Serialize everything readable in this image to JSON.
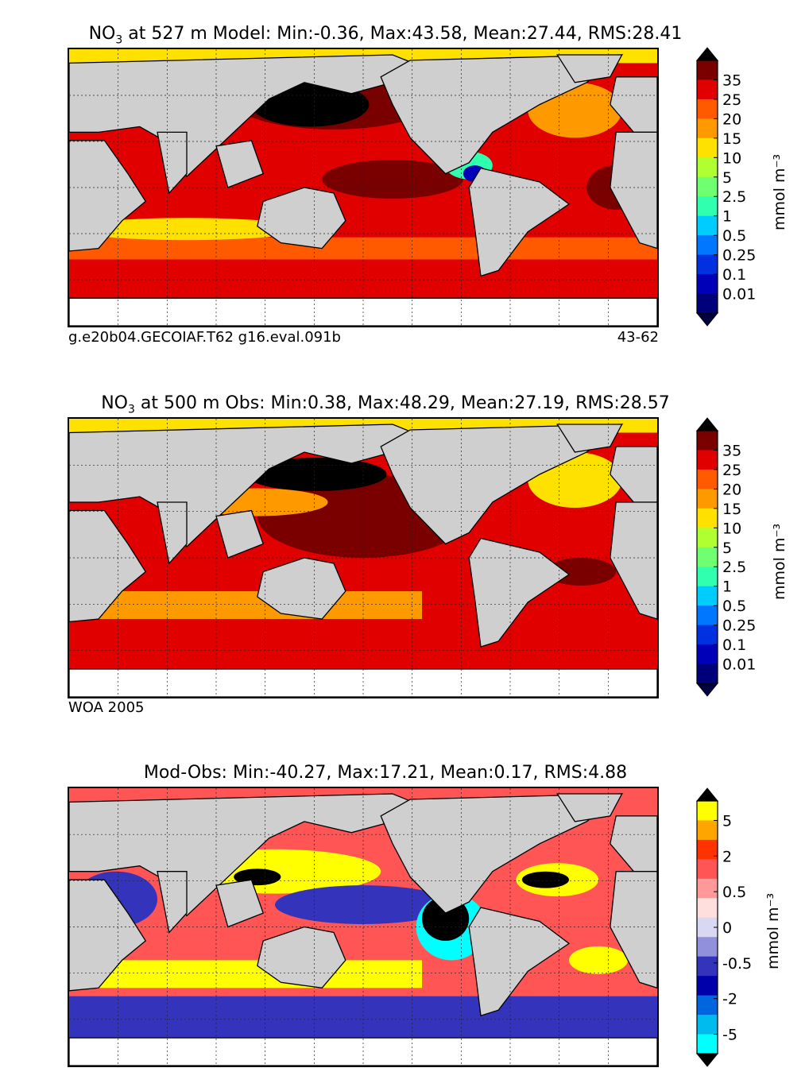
{
  "chart_data": [
    {
      "type": "heatmap",
      "title_prefix": "NO",
      "title_sub": "3",
      "title_rest": " at 527 m Model: Min:-0.36, Max:43.58, Mean:27.44, RMS:28.41",
      "stats": {
        "depth_m": 527,
        "min": -0.36,
        "max": 43.58,
        "mean": 27.44,
        "rms": 28.41
      },
      "left_note": "g.e20b04.GECOIAF.T62 g16.eval.091b",
      "right_note": "43-62",
      "colorbar": {
        "label": "mmol m⁻³",
        "ticks": [
          "35",
          "25",
          "20",
          "15",
          "10",
          "5",
          "2.5",
          "1",
          "0.5",
          "0.25",
          "0.1",
          "0.01"
        ],
        "colors": [
          "#7a0000",
          "#e00000",
          "#ff5a00",
          "#ff9900",
          "#ffe100",
          "#b0ff30",
          "#6fff70",
          "#30ffb0",
          "#00ccff",
          "#0077ff",
          "#0030e0",
          "#0000b8",
          "#00007a"
        ],
        "over_color": "#000000",
        "under_color": "#000040"
      }
    },
    {
      "type": "heatmap",
      "title_prefix": "NO",
      "title_sub": "3",
      "title_rest": " at 500 m Obs: Min:0.38, Max:48.29, Mean:27.19, RMS:28.57",
      "stats": {
        "depth_m": 500,
        "min": 0.38,
        "max": 48.29,
        "mean": 27.19,
        "rms": 28.57
      },
      "left_note": "WOA 2005",
      "colorbar": {
        "label": "mmol m⁻³",
        "ticks": [
          "35",
          "25",
          "20",
          "15",
          "10",
          "5",
          "2.5",
          "1",
          "0.5",
          "0.25",
          "0.1",
          "0.01"
        ],
        "colors": [
          "#7a0000",
          "#e00000",
          "#ff5a00",
          "#ff9900",
          "#ffe100",
          "#b0ff30",
          "#6fff70",
          "#30ffb0",
          "#00ccff",
          "#0077ff",
          "#0030e0",
          "#0000b8",
          "#00007a"
        ],
        "over_color": "#000000",
        "under_color": "#000040"
      }
    },
    {
      "type": "heatmap",
      "title_prefix": "",
      "title_sub": "",
      "title_rest": "Mod-Obs: Min:-40.27, Max:17.21, Mean:0.17, RMS:4.88",
      "stats": {
        "min": -40.27,
        "max": 17.21,
        "mean": 0.17,
        "rms": 4.88
      },
      "colorbar": {
        "label": "mmol m⁻³",
        "ticks": [
          "5",
          "2",
          "0.5",
          "0",
          "-0.5",
          "-2",
          "-5"
        ],
        "colors": [
          "#ffff00",
          "#ffa500",
          "#ff3300",
          "#ff5555",
          "#ff9999",
          "#ffdede",
          "#d8d8f2",
          "#9090dd",
          "#3333bb",
          "#0000aa",
          "#0066dd",
          "#00bbee",
          "#00ffff"
        ],
        "over_color": "#000000",
        "under_color": "#000000"
      }
    }
  ]
}
